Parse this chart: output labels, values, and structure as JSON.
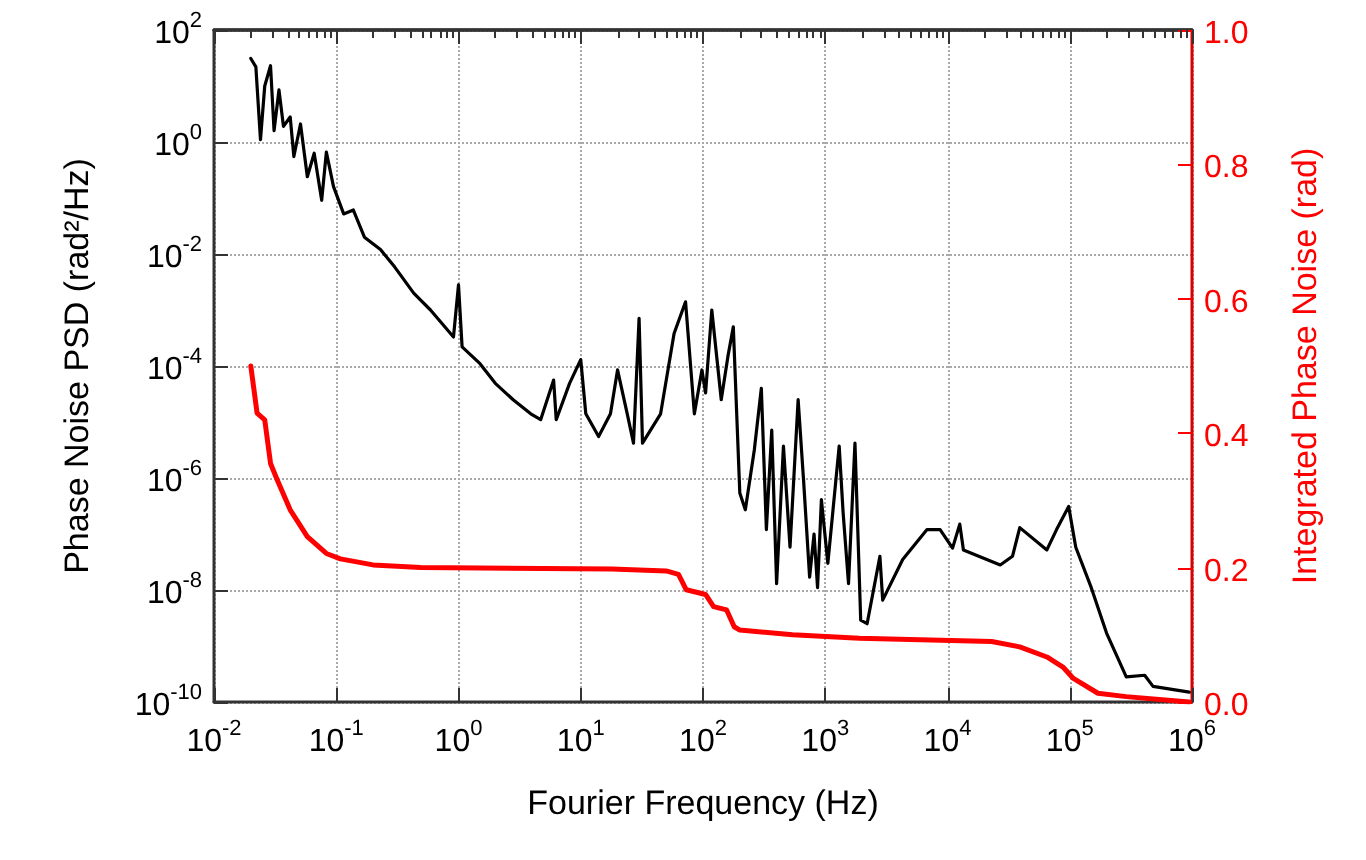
{
  "chart_data": {
    "type": "line",
    "xlabel": "Fourier Frequency (Hz)",
    "ylabel": "Phase Noise PSD (rad²/Hz)",
    "y2label": "Integrated Phase Noise (rad)",
    "log": "xy",
    "grid": true,
    "line_style": "solid",
    "marker": "none",
    "xlim": [
      0.01,
      1000000
    ],
    "ylim": [
      1e-10,
      100
    ],
    "y2lim": [
      0,
      1
    ],
    "xticks": [
      {
        "value": 0.01,
        "label": "10$^{-2}$"
      },
      {
        "value": 0.1,
        "label": "10$^{-1}$"
      },
      {
        "value": 1,
        "label": "10$^{0}$"
      },
      {
        "value": 10,
        "label": "10$^{1}$"
      },
      {
        "value": 100,
        "label": "10$^{2}$"
      },
      {
        "value": 1000,
        "label": "10$^{3}$"
      },
      {
        "value": 10000,
        "label": "10$^{4}$"
      },
      {
        "value": 100000,
        "label": "10$^{5}$"
      },
      {
        "value": 1000000,
        "label": "10$^{6}$"
      },
      {
        "value": 0.02,
        "label": null
      },
      {
        "value": 0.03,
        "label": null
      },
      {
        "value": 0.04,
        "label": null
      },
      {
        "value": 0.05,
        "label": null
      },
      {
        "value": 0.06,
        "label": null
      },
      {
        "value": 0.07,
        "label": null
      },
      {
        "value": 0.08,
        "label": null
      },
      {
        "value": 0.09,
        "label": null
      },
      {
        "value": 0.2,
        "label": null
      },
      {
        "value": 0.3,
        "label": null
      },
      {
        "value": 0.4,
        "label": null
      },
      {
        "value": 0.5,
        "label": null
      },
      {
        "value": 0.6,
        "label": null
      },
      {
        "value": 0.7,
        "label": null
      },
      {
        "value": 0.8,
        "label": null
      },
      {
        "value": 0.9,
        "label": null
      },
      {
        "value": 2,
        "label": null
      },
      {
        "value": 3,
        "label": null
      },
      {
        "value": 4,
        "label": null
      },
      {
        "value": 5,
        "label": null
      },
      {
        "value": 6,
        "label": null
      },
      {
        "value": 7,
        "label": null
      },
      {
        "value": 8,
        "label": null
      },
      {
        "value": 9,
        "label": null
      },
      {
        "value": 20,
        "label": null
      },
      {
        "value": 30,
        "label": null
      },
      {
        "value": 40,
        "label": null
      },
      {
        "value": 50,
        "label": null
      },
      {
        "value": 60,
        "label": null
      },
      {
        "value": 70,
        "label": null
      },
      {
        "value": 80,
        "label": null
      },
      {
        "value": 90,
        "label": null
      },
      {
        "value": 200,
        "label": null
      },
      {
        "value": 300,
        "label": null
      },
      {
        "value": 400,
        "label": null
      },
      {
        "value": 500,
        "label": null
      },
      {
        "value": 600,
        "label": null
      },
      {
        "value": 700,
        "label": null
      },
      {
        "value": 800,
        "label": null
      },
      {
        "value": 900,
        "label": null
      },
      {
        "value": 2000,
        "label": null
      },
      {
        "value": 3000,
        "label": null
      },
      {
        "value": 4000,
        "label": null
      },
      {
        "value": 5000,
        "label": null
      },
      {
        "value": 6000,
        "label": null
      },
      {
        "value": 7000,
        "label": null
      },
      {
        "value": 8000,
        "label": null
      },
      {
        "value": 9000,
        "label": null
      },
      {
        "value": 20000,
        "label": null
      },
      {
        "value": 30000,
        "label": null
      },
      {
        "value": 40000,
        "label": null
      },
      {
        "value": 50000,
        "label": null
      },
      {
        "value": 60000,
        "label": null
      },
      {
        "value": 70000,
        "label": null
      },
      {
        "value": 80000,
        "label": null
      },
      {
        "value": 90000,
        "label": null
      },
      {
        "value": 200000,
        "label": null
      },
      {
        "value": 300000,
        "label": null
      },
      {
        "value": 400000,
        "label": null
      },
      {
        "value": 500000,
        "label": null
      },
      {
        "value": 600000,
        "label": null
      },
      {
        "value": 700000,
        "label": null
      },
      {
        "value": 800000,
        "label": null
      },
      {
        "value": 900000,
        "label": null
      }
    ],
    "yticks": [
      {
        "value": 1e-10,
        "label": "10$^{-10}$"
      },
      {
        "value": 1e-08,
        "label": "10$^{-8}$"
      },
      {
        "value": 1e-06,
        "label": "10$^{-6}$"
      },
      {
        "value": 0.0001,
        "label": "10$^{-4}$"
      },
      {
        "value": 0.01,
        "label": "10$^{-2}$"
      },
      {
        "value": 1,
        "label": "10$^{0}$"
      },
      {
        "value": 100,
        "label": "10$^{2}$"
      }
    ],
    "y2ticks": [
      {
        "value": 0,
        "label": "0.0"
      },
      0.2,
      0.4,
      0.6,
      0.8,
      {
        "value": 1,
        "label": "1.0"
      }
    ],
    "series": [
      {
        "color": "#000000",
        "x": [
          0.02,
          0.022,
          0.024,
          0.026,
          0.029,
          0.031,
          0.034,
          0.037,
          0.042,
          0.045,
          0.051,
          0.058,
          0.066,
          0.076,
          0.083,
          0.095,
          0.115,
          0.138,
          0.17,
          0.23,
          0.3,
          0.43,
          0.59,
          0.91,
          1.0,
          1.07,
          1.5,
          2.0,
          2.8,
          3.9,
          4.7,
          6.0,
          6.3,
          8.1,
          10,
          11,
          14,
          17.5,
          20,
          24,
          27,
          30,
          32,
          45,
          58,
          72,
          85,
          98,
          105,
          118,
          141,
          160,
          177,
          200,
          222,
          263,
          300,
          330,
          365,
          400,
          455,
          515,
          600,
          665,
          745,
          810,
          865,
          930,
          1050,
          1300,
          1400,
          1550,
          1750,
          1950,
          2200,
          2800,
          2950,
          4300,
          6800,
          8700,
          11000,
          12600,
          13500,
          27000,
          34000,
          39000,
          65000,
          78000,
          98000,
          112000,
          150000,
          200000,
          290000,
          410000,
          480000,
          950000
        ],
        "values": [
          31,
          22,
          1.1,
          10,
          23,
          1.6,
          8.5,
          1.9,
          2.8,
          0.55,
          2.1,
          0.24,
          0.63,
          0.091,
          0.66,
          0.16,
          0.052,
          0.061,
          0.02,
          0.012,
          0.0059,
          0.002,
          0.001,
          0.00033,
          0.0028,
          0.00022,
          0.00011,
          4.9e-05,
          2.5e-05,
          1.4e-05,
          1.1e-05,
          5.6e-05,
          1.1e-05,
          4.9e-05,
          0.00013,
          1.4e-05,
          5.5e-06,
          1.4e-05,
          8.5e-05,
          1.4e-05,
          4.2e-06,
          0.00071,
          4.2e-06,
          1.4e-05,
          0.00038,
          0.0014,
          1.4e-05,
          8.5e-05,
          3.3e-05,
          0.001,
          2.5e-05,
          0.00015,
          0.0005,
          5.4e-07,
          2.7e-07,
          3.2e-06,
          4e-05,
          1.2e-07,
          7.2e-06,
          1.3e-08,
          3.7e-06,
          5.8e-08,
          2.5e-05,
          9e-07,
          1.7e-08,
          1e-07,
          1.1e-08,
          4.1e-07,
          3e-08,
          3.7e-06,
          2.4e-07,
          1.3e-08,
          4.2e-06,
          2.9e-09,
          2.5e-09,
          4e-08,
          6.6e-09,
          3.5e-08,
          1.2e-07,
          1.2e-07,
          5.6e-08,
          1.5e-07,
          5.2e-08,
          2.8e-08,
          4e-08,
          1.3e-07,
          5.2e-08,
          1.2e-07,
          3.1e-07,
          5.8e-08,
          1.1e-08,
          1.7e-09,
          2.8e-10,
          3e-10,
          1.9e-10,
          1.5e-10
        ]
      },
      {
        "color": "#ff0000",
        "axis": "y2",
        "x": [
          0.02,
          0.0225,
          0.026,
          0.029,
          0.033,
          0.042,
          0.058,
          0.083,
          0.108,
          0.2,
          0.49,
          18,
          50,
          63,
          73,
          105,
          122,
          156,
          180,
          200,
          540,
          1900,
          23000,
          39000,
          65000,
          88000,
          107000,
          170000,
          290000,
          800000,
          950000
        ],
        "values": [
          0.5,
          0.43,
          0.42,
          0.355,
          0.33,
          0.286,
          0.246,
          0.221,
          0.213,
          0.204,
          0.2,
          0.198,
          0.195,
          0.19,
          0.167,
          0.16,
          0.142,
          0.137,
          0.112,
          0.107,
          0.1,
          0.095,
          0.09,
          0.082,
          0.067,
          0.052,
          0.035,
          0.013,
          0.008,
          0.001,
          0.0
        ]
      }
    ]
  }
}
